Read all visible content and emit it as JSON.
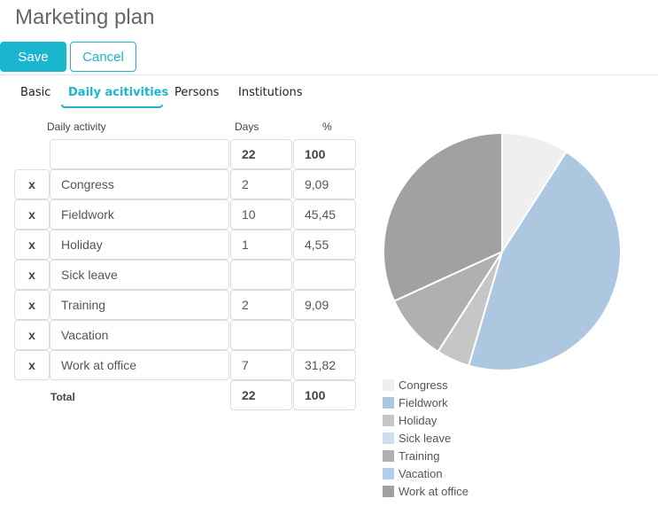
{
  "page": {
    "title": "Marketing plan"
  },
  "toolbar": {
    "save_label": "Save",
    "cancel_label": "Cancel"
  },
  "tabs": [
    {
      "label": "Basic",
      "active": false
    },
    {
      "label": "Daily acitivities",
      "active": true
    },
    {
      "label": "Persons",
      "active": false
    },
    {
      "label": "Institutions",
      "active": false
    }
  ],
  "table": {
    "headers": {
      "activity": "Daily activity",
      "days": "Days",
      "percent": "%"
    },
    "summary": {
      "activity": "",
      "days": "22",
      "percent": "100"
    },
    "remove_label": "x",
    "rows": [
      {
        "activity": "Congress",
        "days": "2",
        "percent": "9,09"
      },
      {
        "activity": "Fieldwork",
        "days": "10",
        "percent": "45,45"
      },
      {
        "activity": "Holiday",
        "days": "1",
        "percent": "4,55"
      },
      {
        "activity": "Sick leave",
        "days": "",
        "percent": ""
      },
      {
        "activity": "Training",
        "days": "2",
        "percent": "9,09"
      },
      {
        "activity": "Vacation",
        "days": "",
        "percent": ""
      },
      {
        "activity": "Work at office",
        "days": "7",
        "percent": "31,82"
      }
    ],
    "total": {
      "label": "Total",
      "days": "22",
      "percent": "100"
    }
  },
  "chart_data": {
    "type": "pie",
    "categories": [
      "Congress",
      "Fieldwork",
      "Holiday",
      "Sick leave",
      "Training",
      "Vacation",
      "Work at office"
    ],
    "values": [
      2,
      10,
      1,
      0,
      2,
      0,
      7
    ],
    "colors": [
      "#efefef",
      "#adc7e1",
      "#c6c6c6",
      "#cddef0",
      "#b0b0b0",
      "#b3cdef",
      "#a0a1a3"
    ],
    "title": "",
    "legend": "bottom"
  }
}
